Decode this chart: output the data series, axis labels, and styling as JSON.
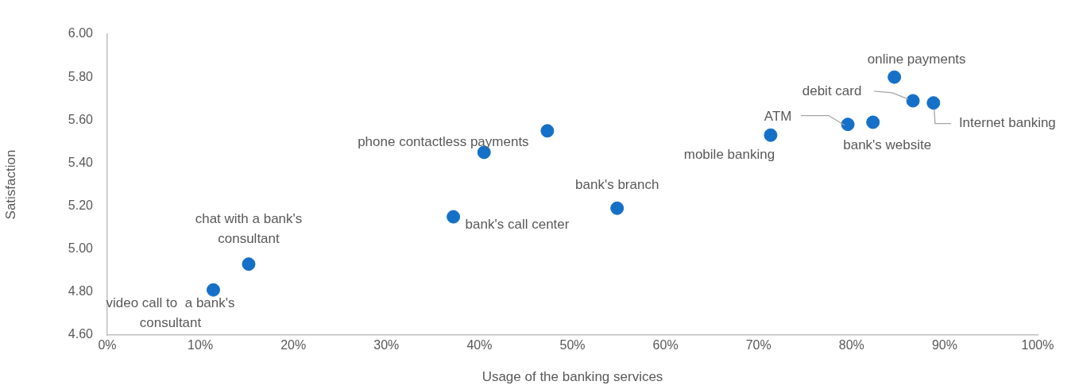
{
  "chart_data": {
    "type": "scatter",
    "xlabel": "Usage of the banking services",
    "ylabel": "Satisfaction",
    "series": [
      {
        "color": "#1570c8",
        "x": [
          11.4,
          15.2,
          37.2,
          40.5,
          47.3,
          54.8,
          71.3,
          79.6,
          82.3,
          84.6,
          86.6,
          88.8
        ],
        "values": [
          4.81,
          4.93,
          5.15,
          5.45,
          5.55,
          5.19,
          5.53,
          5.58,
          5.59,
          5.8,
          5.69,
          5.68
        ]
      }
    ],
    "xlim": [
      0,
      100
    ],
    "xticks": [
      {
        "value": 0,
        "label": "0%"
      },
      {
        "value": 10,
        "label": "10%"
      },
      {
        "value": 20,
        "label": "20%"
      },
      {
        "value": 30,
        "label": "30%"
      },
      {
        "value": 40,
        "label": "40%"
      },
      {
        "value": 50,
        "label": "50%"
      },
      {
        "value": 60,
        "label": "60%"
      },
      {
        "value": 70,
        "label": "70%"
      },
      {
        "value": 80,
        "label": "80%"
      },
      {
        "value": 90,
        "label": "90%"
      },
      {
        "value": 100,
        "label": "100%"
      }
    ],
    "ylim": [
      4.6,
      6.0
    ],
    "yticks": [
      {
        "value": 4.6,
        "label": "4.60"
      },
      {
        "value": 4.8,
        "label": "4.80"
      },
      {
        "value": 5.0,
        "label": "5.00"
      },
      {
        "value": 5.2,
        "label": "5.20"
      },
      {
        "value": 5.4,
        "label": "5.40"
      },
      {
        "value": 5.6,
        "label": "5.60"
      },
      {
        "value": 5.8,
        "label": "5.80"
      },
      {
        "value": 6.0,
        "label": "6.00"
      }
    ],
    "annotations": [
      {
        "text": "video call to  a bank's consultant",
        "x": 11.4,
        "y": 4.81
      },
      {
        "text": "chat with a bank's consultant",
        "x": 15.2,
        "y": 4.93
      },
      {
        "text": "bank's call center",
        "x": 37.2,
        "y": 5.15
      },
      {
        "text": "phone contactless payments",
        "x": 47.3,
        "y": 5.55
      },
      {
        "text": "bank's branch",
        "x": 54.8,
        "y": 5.19
      },
      {
        "text": "mobile banking",
        "x": 71.3,
        "y": 5.53
      },
      {
        "text": "ATM",
        "x": 79.6,
        "y": 5.58
      },
      {
        "text": "bank's website",
        "x": 82.3,
        "y": 5.59
      },
      {
        "text": "online payments",
        "x": 84.6,
        "y": 5.8
      },
      {
        "text": "debit card",
        "x": 86.6,
        "y": 5.69
      },
      {
        "text": "Internet banking",
        "x": 88.8,
        "y": 5.68
      }
    ],
    "grid": false,
    "marker": "circle"
  }
}
